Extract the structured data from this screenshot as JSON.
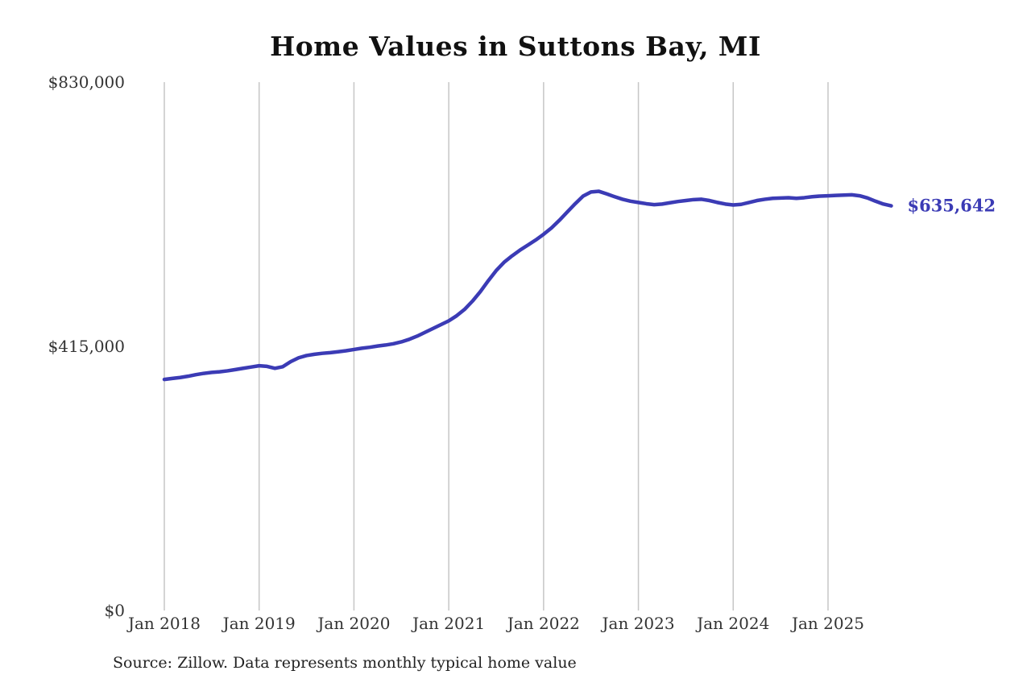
{
  "title": "Home Values in Suttons Bay, MI",
  "source_note": "Source: Zillow. Data represents monthly typical home value",
  "colors": {
    "line": "#3b3bb5",
    "grid": "#c6c6c6",
    "axis_text": "#333333",
    "title_text": "#111111"
  },
  "chart_data": {
    "type": "line",
    "title": "Home Values in Suttons Bay, MI",
    "xlabel": "",
    "ylabel": "",
    "ylim": [
      0,
      830000
    ],
    "grid": "vertical",
    "legend": "none",
    "yticks": [
      {
        "value": 0,
        "label": "$0"
      },
      {
        "value": 415000,
        "label": "$415,000"
      },
      {
        "value": 830000,
        "label": "$830,000"
      }
    ],
    "xticks": [
      {
        "x": "2018-01",
        "label": "Jan 2018"
      },
      {
        "x": "2019-01",
        "label": "Jan 2019"
      },
      {
        "x": "2020-01",
        "label": "Jan 2020"
      },
      {
        "x": "2021-01",
        "label": "Jan 2021"
      },
      {
        "x": "2022-01",
        "label": "Jan 2022"
      },
      {
        "x": "2023-01",
        "label": "Jan 2023"
      },
      {
        "x": "2024-01",
        "label": "Jan 2024"
      },
      {
        "x": "2025-01",
        "label": "Jan 2025"
      }
    ],
    "end_label": "$635,642",
    "x": [
      "2018-01",
      "2018-02",
      "2018-03",
      "2018-04",
      "2018-05",
      "2018-06",
      "2018-07",
      "2018-08",
      "2018-09",
      "2018-10",
      "2018-11",
      "2018-12",
      "2019-01",
      "2019-02",
      "2019-03",
      "2019-04",
      "2019-05",
      "2019-06",
      "2019-07",
      "2019-08",
      "2019-09",
      "2019-10",
      "2019-11",
      "2019-12",
      "2020-01",
      "2020-02",
      "2020-03",
      "2020-04",
      "2020-05",
      "2020-06",
      "2020-07",
      "2020-08",
      "2020-09",
      "2020-10",
      "2020-11",
      "2020-12",
      "2021-01",
      "2021-02",
      "2021-03",
      "2021-04",
      "2021-05",
      "2021-06",
      "2021-07",
      "2021-08",
      "2021-09",
      "2021-10",
      "2021-11",
      "2021-12",
      "2022-01",
      "2022-02",
      "2022-03",
      "2022-04",
      "2022-05",
      "2022-06",
      "2022-07",
      "2022-08",
      "2022-09",
      "2022-10",
      "2022-11",
      "2022-12",
      "2023-01",
      "2023-02",
      "2023-03",
      "2023-04",
      "2023-05",
      "2023-06",
      "2023-07",
      "2023-08",
      "2023-09",
      "2023-10",
      "2023-11",
      "2023-12",
      "2024-01",
      "2024-02",
      "2024-03",
      "2024-04",
      "2024-05",
      "2024-06",
      "2024-07",
      "2024-08",
      "2024-09",
      "2024-10",
      "2024-11",
      "2024-12",
      "2025-01",
      "2025-02",
      "2025-03",
      "2025-04",
      "2025-05",
      "2025-06",
      "2025-07",
      "2025-08",
      "2025-09"
    ],
    "values": [
      363000,
      364500,
      366000,
      368000,
      370500,
      372500,
      374000,
      375000,
      376500,
      378500,
      380500,
      382500,
      384500,
      383500,
      380500,
      383000,
      391000,
      397000,
      400500,
      402500,
      404000,
      405000,
      406500,
      408000,
      410000,
      412000,
      413500,
      415500,
      417000,
      419000,
      422000,
      426000,
      431000,
      437000,
      443000,
      449000,
      455000,
      463000,
      473000,
      486000,
      501000,
      518000,
      534000,
      547000,
      557000,
      566000,
      574000,
      582000,
      591000,
      601000,
      613000,
      626000,
      639000,
      651000,
      657500,
      658500,
      654500,
      650000,
      646000,
      643000,
      641000,
      639000,
      637500,
      638500,
      640500,
      642500,
      644000,
      645500,
      646000,
      644000,
      641000,
      638500,
      637000,
      638000,
      641000,
      644000,
      646000,
      647500,
      648000,
      648500,
      647500,
      648500,
      650000,
      651000,
      651500,
      652000,
      652500,
      653000,
      651500,
      648000,
      643000,
      638500,
      635642
    ]
  }
}
